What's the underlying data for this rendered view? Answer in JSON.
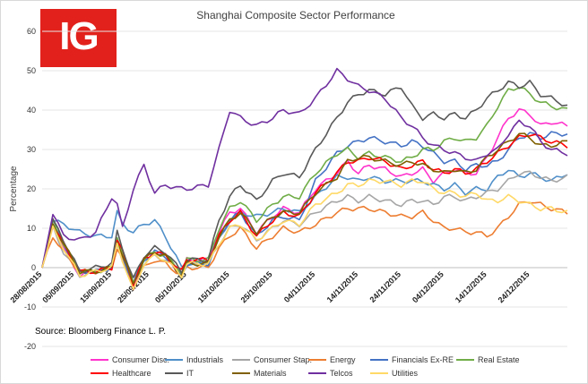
{
  "logo": {
    "text": "IG",
    "color": "#e2211c"
  },
  "source": "Source: Bloomberg Finance L. P.",
  "chart_data": {
    "type": "line",
    "title": "Shanghai Composite Sector Performance",
    "xlabel": "",
    "ylabel": "Percentage",
    "ylim": [
      -20,
      60
    ],
    "yticks": [
      -20,
      -10,
      0,
      10,
      20,
      30,
      40,
      50,
      60
    ],
    "x_tick_labels": [
      "28/08/2015",
      "05/09/2015",
      "15/09/2015",
      "25/09/2015",
      "05/10/2015",
      "15/10/2015",
      "25/10/2015",
      "04/11/2015",
      "14/11/2015",
      "24/11/2015",
      "04/12/2015",
      "14/12/2015",
      "24/12/2015"
    ],
    "x_tick_index": [
      0,
      6,
      13,
      20,
      27,
      35,
      43,
      51,
      59,
      67,
      75,
      83,
      91
    ],
    "n_points": 99,
    "grid": "horizontal",
    "legend_position": "bottom",
    "anchors": [
      0,
      2,
      4,
      7,
      10,
      13,
      14,
      15,
      17,
      19,
      21,
      23,
      26,
      27,
      31,
      33,
      35,
      37,
      40,
      43,
      45,
      48,
      51,
      55,
      57,
      59,
      61,
      64,
      67,
      69,
      71,
      73,
      75,
      77,
      79,
      81,
      83,
      85,
      87,
      89,
      91,
      93,
      95,
      98
    ],
    "series": [
      {
        "name": "Consumer Disc.",
        "color": "#ff33cc",
        "values": [
          0,
          11,
          5,
          -2,
          -1,
          0,
          7,
          3,
          -5,
          2,
          4,
          3,
          -2,
          2,
          2,
          9,
          14,
          15,
          9,
          13,
          15,
          14,
          20,
          24,
          27,
          24,
          26,
          25,
          23,
          24,
          25,
          22,
          24,
          25,
          24,
          24,
          28,
          33,
          38,
          40,
          39,
          36,
          37,
          36
        ]
      },
      {
        "name": "Industrials",
        "color": "#4f8fc9",
        "values": [
          0,
          12,
          11,
          9,
          8,
          8,
          14,
          11,
          9,
          11,
          12,
          8,
          0,
          1,
          1,
          7,
          12,
          14,
          13,
          14,
          15,
          14,
          18,
          23,
          23,
          22,
          23,
          22,
          22,
          22,
          22,
          21,
          20,
          21,
          19,
          20,
          20,
          23,
          25,
          23,
          24,
          23,
          22,
          24
        ]
      },
      {
        "name": "Consumer Stap.",
        "color": "#a6a6a6",
        "values": [
          0,
          10,
          4,
          -2,
          -1,
          0,
          6,
          2,
          -3,
          1,
          3,
          2,
          -2,
          1,
          1,
          6,
          10,
          11,
          7,
          10,
          12,
          11,
          14,
          17,
          18,
          17,
          18,
          17,
          16,
          17,
          17,
          16,
          18,
          18,
          17,
          18,
          19,
          20,
          22,
          24,
          24,
          23,
          22,
          23
        ]
      },
      {
        "name": "Energy",
        "color": "#ed7d31",
        "values": [
          0,
          8,
          4,
          -1,
          -1,
          0,
          5,
          2,
          -5,
          0,
          2,
          1,
          -2,
          0,
          0,
          5,
          8,
          10,
          5,
          8,
          10,
          9,
          11,
          14,
          15,
          15,
          15,
          14,
          13,
          13,
          14,
          12,
          10,
          10,
          9,
          9,
          8,
          10,
          13,
          16,
          17,
          16,
          15,
          14
        ]
      },
      {
        "name": "Financials Ex-RE",
        "color": "#4472c4",
        "values": [
          0,
          11,
          6,
          -1,
          -1,
          0,
          7,
          3,
          -4,
          2,
          4,
          3,
          -2,
          1,
          1,
          8,
          12,
          14,
          8,
          12,
          13,
          12,
          22,
          29,
          31,
          32,
          33,
          32,
          31,
          32,
          31,
          29,
          27,
          27,
          25,
          26,
          26,
          27,
          30,
          33,
          34,
          33,
          34,
          34
        ]
      },
      {
        "name": "Real Estate",
        "color": "#70ad47",
        "values": [
          0,
          12,
          6,
          -1,
          -1,
          0,
          8,
          4,
          -4,
          2,
          4,
          3,
          -1,
          2,
          2,
          10,
          15,
          17,
          12,
          16,
          18,
          18,
          24,
          29,
          30,
          28,
          29,
          28,
          27,
          28,
          30,
          30,
          32,
          33,
          32,
          33,
          36,
          41,
          45,
          46,
          44,
          42,
          41,
          40
        ]
      },
      {
        "name": "Healthcare",
        "color": "#ff0000",
        "values": [
          0,
          11,
          6,
          -1,
          -1,
          0,
          7,
          4,
          -4,
          2,
          4,
          3,
          -1,
          2,
          2,
          8,
          12,
          14,
          8,
          12,
          14,
          13,
          19,
          24,
          27,
          27,
          28,
          27,
          25,
          26,
          27,
          25,
          24,
          25,
          24,
          25,
          27,
          29,
          31,
          33,
          34,
          33,
          32,
          31
        ]
      },
      {
        "name": "IT",
        "color": "#595959",
        "values": [
          0,
          12,
          7,
          -1,
          0,
          1,
          9,
          5,
          -3,
          3,
          5,
          4,
          -1,
          2,
          2,
          12,
          18,
          21,
          17,
          22,
          24,
          23,
          30,
          38,
          42,
          44,
          45,
          44,
          46,
          41,
          38,
          39,
          38,
          39,
          38,
          40,
          43,
          45,
          47,
          46,
          47,
          44,
          43,
          41
        ]
      },
      {
        "name": "Materials",
        "color": "#7f6000",
        "values": [
          0,
          11,
          6,
          -1,
          -1,
          0,
          7,
          3,
          -4,
          2,
          4,
          3,
          -2,
          1,
          1,
          8,
          12,
          14,
          9,
          13,
          14,
          14,
          19,
          23,
          27,
          28,
          28,
          27,
          26,
          27,
          26,
          25,
          24,
          25,
          24,
          25,
          28,
          30,
          32,
          34,
          33,
          31,
          31,
          32
        ]
      },
      {
        "name": "Telcos",
        "color": "#7030a0",
        "values": [
          0,
          14,
          8,
          7,
          9,
          18,
          16,
          10,
          20,
          26,
          19,
          21,
          20,
          20,
          21,
          30,
          40,
          38,
          36,
          38,
          40,
          39,
          43,
          50,
          48,
          46,
          45,
          43,
          38,
          36,
          33,
          31,
          30,
          29,
          28,
          27,
          29,
          30,
          34,
          37,
          36,
          32,
          30,
          29
        ]
      },
      {
        "name": "Utilities",
        "color": "#ffd966",
        "values": [
          0,
          10,
          5,
          -2,
          -1,
          0,
          6,
          2,
          -6,
          1,
          3,
          2,
          -2,
          1,
          1,
          6,
          10,
          11,
          7,
          10,
          12,
          11,
          16,
          19,
          21,
          21,
          22,
          22,
          21,
          22,
          22,
          20,
          19,
          19,
          18,
          19,
          17,
          17,
          18,
          17,
          16,
          15,
          15,
          14
        ]
      }
    ]
  }
}
